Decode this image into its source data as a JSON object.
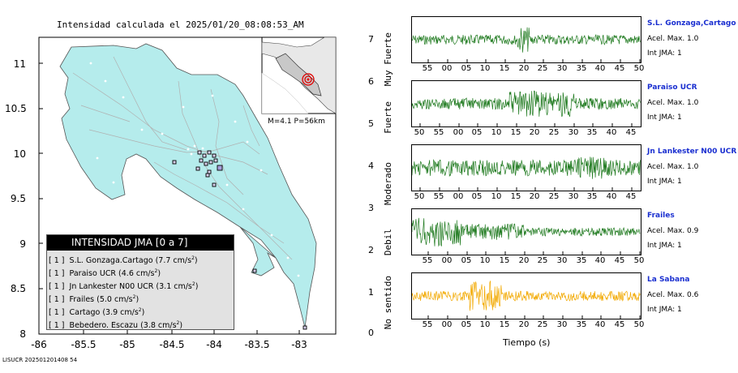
{
  "title": "Intensidad calculada el 2025/01/20_08:08:53_AM",
  "footer_id": "LISUCR 202501201408 54",
  "map": {
    "y_axis_ticks": [
      "11",
      "10.5",
      "10",
      "9.5",
      "9",
      "8.5",
      "8"
    ],
    "x_axis_ticks": [
      "-86",
      "-85.5",
      "-85",
      "-84.5",
      "-84",
      "-83.5",
      "-83"
    ],
    "lat_range": [
      8,
      11.3
    ],
    "lon_range": [
      -86,
      -82.7
    ]
  },
  "inset": {
    "magnitude_note": "M=4.1  P=56km"
  },
  "colorbar": {
    "ticks": [
      "7",
      "6",
      "5",
      "4",
      "3",
      "2",
      "1",
      "0"
    ],
    "categories": [
      "Muy Fuerte",
      "Fuerte",
      "Moderado",
      "Debil",
      "No sentido"
    ]
  },
  "legend": {
    "title": "INTENSIDAD JMA [0 a 7]",
    "entries": [
      {
        "jma": "[ 1 ]",
        "station": "S.L. Gonzaga.Cartago",
        "accel": "(7.7 cm/s",
        "sup": "2",
        "close": ")"
      },
      {
        "jma": "[ 1 ]",
        "station": "Paraiso UCR",
        "accel": "(4.6 cm/s",
        "sup": "2",
        "close": ")"
      },
      {
        "jma": "[ 1 ]",
        "station": "Jn Lankester N00 UCR",
        "accel": "(3.1 cm/s",
        "sup": "2",
        "close": ")"
      },
      {
        "jma": "[ 1 ]",
        "station": "Frailes",
        "accel": "(5.0 cm/s",
        "sup": "2",
        "close": ")"
      },
      {
        "jma": "[ 1 ]",
        "station": "Cartago",
        "accel": "(3.9 cm/s",
        "sup": "2",
        "close": ")"
      },
      {
        "jma": "[ 1 ]",
        "station": "Bebedero. Escazu",
        "accel": "(3.8 cm/s",
        "sup": "2",
        "close": ")"
      }
    ]
  },
  "waveforms": {
    "x_axis_title": "Tiempo (s)",
    "stations": [
      {
        "name": "S.L. Gonzaga,Cartago",
        "accel_label": "Acel. Max. 1.0",
        "jma_label": "Int JMA: 1",
        "color": "#1f7a1f",
        "ticks": [
          "55",
          "00",
          "05",
          "10",
          "15",
          "20",
          "25",
          "30",
          "35",
          "40",
          "45",
          "50"
        ]
      },
      {
        "name": "Paraiso UCR",
        "accel_label": "Acel. Max. 1.0",
        "jma_label": "Int JMA: 1",
        "color": "#1f7a1f",
        "ticks": [
          "50",
          "55",
          "00",
          "05",
          "10",
          "15",
          "20",
          "25",
          "30",
          "35",
          "40",
          "45"
        ]
      },
      {
        "name": "Jn Lankester N00 UCR",
        "accel_label": "Acel. Max. 1.0",
        "jma_label": "Int JMA: 1",
        "color": "#1f7a1f",
        "ticks": [
          "50",
          "55",
          "00",
          "05",
          "10",
          "15",
          "20",
          "25",
          "30",
          "35",
          "40",
          "45"
        ]
      },
      {
        "name": "Frailes",
        "accel_label": "Acel. Max. 0.9",
        "jma_label": "Int JMA: 1",
        "color": "#1f7a1f",
        "ticks": [
          "55",
          "00",
          "05",
          "10",
          "15",
          "20",
          "25",
          "30",
          "35",
          "40",
          "45",
          "50"
        ]
      },
      {
        "name": "La Sabana",
        "accel_label": "Acel. Max. 0.6",
        "jma_label": "Int JMA: 1",
        "color": "#f2a900",
        "ticks": [
          "55",
          "00",
          "05",
          "10",
          "15",
          "20",
          "25",
          "30",
          "35",
          "40",
          "45",
          "50"
        ]
      }
    ]
  }
}
